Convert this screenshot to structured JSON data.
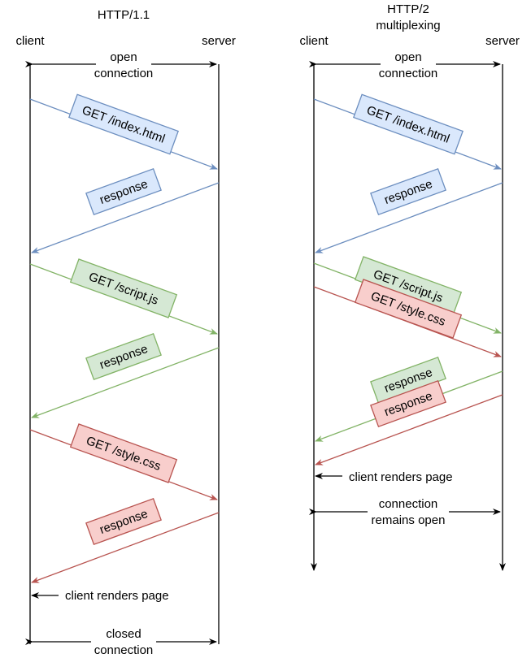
{
  "left": {
    "title": "HTTP/1.1",
    "client_label": "client",
    "server_label": "server",
    "open_connection": [
      "open",
      "connection"
    ],
    "closed_connection": [
      "closed",
      "connection"
    ],
    "client_renders": "client renders page",
    "messages": [
      {
        "text": "GET /index.html",
        "color": "blue",
        "direction": "to-server"
      },
      {
        "text": "response",
        "color": "blue",
        "direction": "to-client"
      },
      {
        "text": "GET /script.js",
        "color": "green",
        "direction": "to-server"
      },
      {
        "text": "response",
        "color": "green",
        "direction": "to-client"
      },
      {
        "text": "GET /style.css",
        "color": "red",
        "direction": "to-server"
      },
      {
        "text": "response",
        "color": "red",
        "direction": "to-client"
      }
    ]
  },
  "right": {
    "title": "HTTP/2",
    "subtitle": "multiplexing",
    "client_label": "client",
    "server_label": "server",
    "open_connection": [
      "open",
      "connection"
    ],
    "remains_open": [
      "connection",
      "remains open"
    ],
    "client_renders": "client renders page",
    "messages": [
      {
        "text": "GET /index.html",
        "color": "blue",
        "direction": "to-server"
      },
      {
        "text": "response",
        "color": "blue",
        "direction": "to-client"
      },
      {
        "text": "GET /script.js",
        "color": "green",
        "direction": "to-server"
      },
      {
        "text": "GET /style.css",
        "color": "red",
        "direction": "to-server"
      },
      {
        "text": "response",
        "color": "green",
        "direction": "to-client"
      },
      {
        "text": "response",
        "color": "red",
        "direction": "to-client"
      }
    ]
  },
  "colors": {
    "blue_line": "#6c8ebf",
    "blue_fill": "#dae8fc",
    "green_line": "#82b366",
    "green_fill": "#d5e8d4",
    "red_line": "#b85450",
    "red_fill": "#f8cecc"
  }
}
